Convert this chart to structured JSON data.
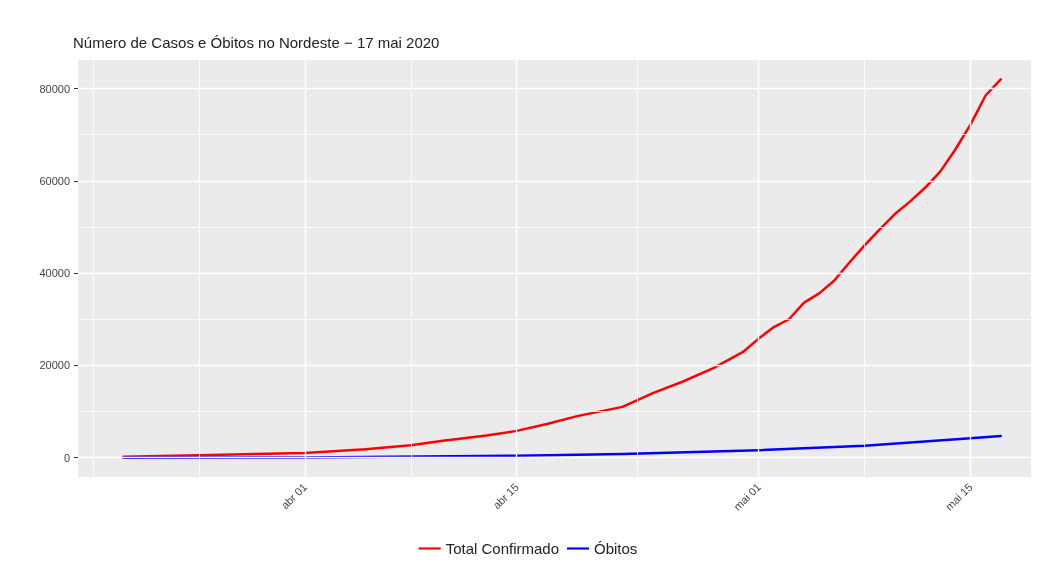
{
  "chart_data": {
    "type": "line",
    "title": "Número de Casos e Óbitos no Nordeste − 17 mai 2020",
    "xlim": [
      "2020-03-17",
      "2020-05-19"
    ],
    "xticks": [
      {
        "value": "2020-03-18",
        "label": null
      },
      {
        "value": "2020-03-25",
        "label": null
      },
      {
        "value": "2020-04-01",
        "label": "abr 01"
      },
      {
        "value": "2020-04-08",
        "label": null
      },
      {
        "value": "2020-04-15",
        "label": "abr 15"
      },
      {
        "value": "2020-04-23",
        "label": null
      },
      {
        "value": "2020-05-01",
        "label": "mai 01"
      },
      {
        "value": "2020-05-08",
        "label": null
      },
      {
        "value": "2020-05-15",
        "label": "mai 15"
      }
    ],
    "ylim": [
      -4200,
      86200
    ],
    "yticks": [
      0,
      {
        "value": 10000,
        "label": null
      },
      20000,
      {
        "value": 30000,
        "label": null
      },
      40000,
      {
        "value": 50000,
        "label": null
      },
      60000,
      {
        "value": 70000,
        "label": null
      },
      80000
    ],
    "grid": true,
    "legend": "bottom",
    "line_style": "solid",
    "marker": "none",
    "series": [
      {
        "name": "Total Confirmado",
        "color": "#ff0000",
        "x": [
          "2020-03-20",
          "2020-03-25",
          "2020-04-01",
          "2020-04-05",
          "2020-04-08",
          "2020-04-10",
          "2020-04-13",
          "2020-04-15",
          "2020-04-17",
          "2020-04-19",
          "2020-04-22",
          "2020-04-24",
          "2020-04-26",
          "2020-04-28",
          "2020-04-30",
          "2020-05-01",
          "2020-05-02",
          "2020-05-03",
          "2020-05-04",
          "2020-05-05",
          "2020-05-06",
          "2020-05-07",
          "2020-05-08",
          "2020-05-09",
          "2020-05-10",
          "2020-05-11",
          "2020-05-12",
          "2020-05-13",
          "2020-05-14",
          "2020-05-15",
          "2020-05-16",
          "2020-05-17"
        ],
        "values": [
          200,
          500,
          1000,
          1800,
          2700,
          3600,
          4800,
          5800,
          7300,
          9000,
          11000,
          14000,
          16500,
          19400,
          23000,
          25800,
          28300,
          30000,
          33600,
          35600,
          38400,
          42300,
          46000,
          49500,
          52800,
          55500,
          58500,
          62000,
          66800,
          72200,
          78500,
          82000
        ]
      },
      {
        "name": "Óbitos",
        "color": "#0000ff",
        "x": [
          "2020-03-20",
          "2020-04-01",
          "2020-04-15",
          "2020-04-22",
          "2020-05-01",
          "2020-05-08",
          "2020-05-15",
          "2020-05-17"
        ],
        "values": [
          0,
          50,
          400,
          800,
          1600,
          2600,
          4200,
          4700
        ]
      }
    ]
  }
}
